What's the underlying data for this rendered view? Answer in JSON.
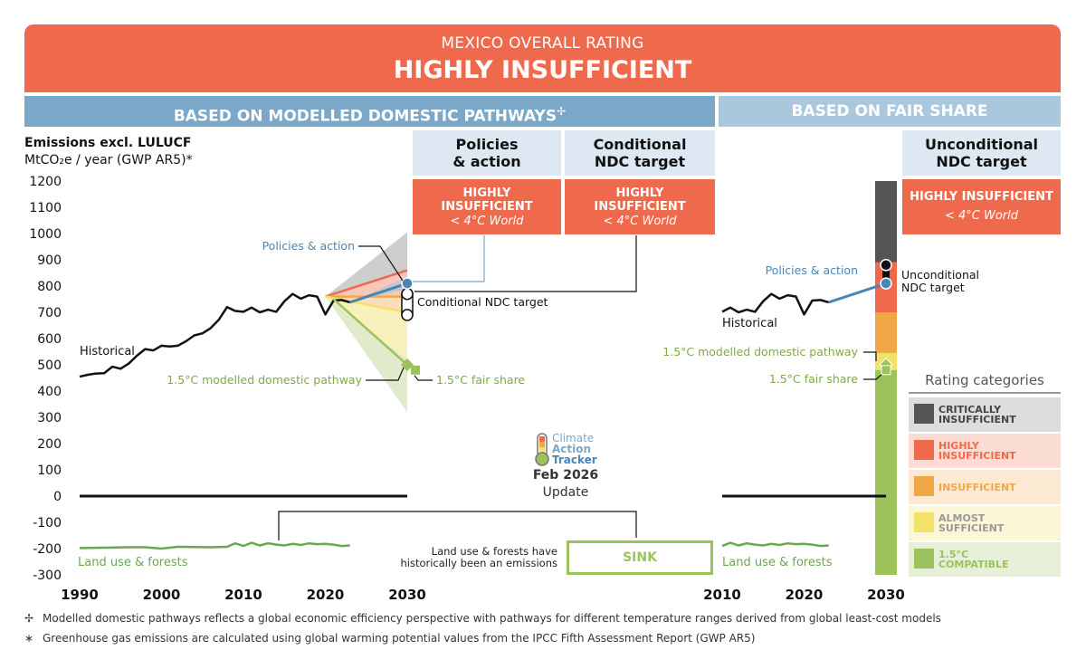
{
  "banner": {
    "subtitle": "MEXICO OVERALL RATING",
    "title": "HIGHLY INSUFFICIENT",
    "color": "#ef6a4c"
  },
  "section_headers": {
    "left": "BASED ON MODELLED DOMESTIC PATHWAYS",
    "left_symbol": "✢",
    "right": "BASED ON FAIR SHARE"
  },
  "columns": {
    "policies": {
      "title_line1": "Policies",
      "title_line2": "& action",
      "rating_line1": "HIGHLY",
      "rating_line2": "INSUFFICIENT",
      "world": "< 4°C World"
    },
    "conditional": {
      "title_line1": "Conditional",
      "title_line2": "NDC target",
      "rating_line1": "HIGHLY",
      "rating_line2": "INSUFFICIENT",
      "world": "< 4°C World"
    },
    "unconditional": {
      "title_line1": "Unconditional",
      "title_line2": "NDC target",
      "rating": "HIGHLY INSUFFICIENT",
      "world": "< 4°C World"
    }
  },
  "axis": {
    "title": "Emissions excl. LULUCF",
    "unit": "MtCO₂e / year (GWP AR5)*"
  },
  "annotations": {
    "historical": "Historical",
    "policies_action": "Policies & action",
    "conditional_ndc": "Conditional NDC target",
    "unconditional_ndc_line1": "Unconditional",
    "unconditional_ndc_line2": "NDC target",
    "modelled_pathway": "1.5°C modelled domestic pathway",
    "fair_share": "1.5°C fair share",
    "land_use": "Land use & forests",
    "sink_note_line1": "Land use & forests have",
    "sink_note_line2": "historically been an emissions",
    "sink": "SINK"
  },
  "update": {
    "logo_line1": "Climate",
    "logo_line2": "Action",
    "logo_line3": "Tracker",
    "date": "Feb 2026",
    "label": "Update"
  },
  "legend": {
    "title": "Rating categories",
    "items": [
      {
        "label_line1": "CRITICALLY",
        "label_line2": "INSUFFICIENT",
        "color": "#555555",
        "bg": "#dddddd",
        "text_color": "#444444"
      },
      {
        "label_line1": "HIGHLY",
        "label_line2": "INSUFFICIENT",
        "color": "#ef6a4c",
        "bg": "#fbdcd4",
        "text_color": "#ef6a4c"
      },
      {
        "label_line1": "INSUFFICIENT",
        "label_line2": "",
        "color": "#f0a847",
        "bg": "#fce9d2",
        "text_color": "#f0a847"
      },
      {
        "label_line1": "ALMOST",
        "label_line2": "SUFFICIENT",
        "color": "#f3e26a",
        "bg": "#fbf6d6",
        "text_color": "#999999"
      },
      {
        "label_line1": "1.5°C",
        "label_line2": "COMPATIBLE",
        "color": "#9cc25b",
        "bg": "#e6efd7",
        "text_color": "#9cc25b"
      }
    ]
  },
  "footnotes": {
    "f1_symbol": "✢",
    "f1": "Modelled domestic pathways reflects a global economic efficiency perspective with pathways for different temperature ranges derived from global least-cost models",
    "f2_symbol": "∗",
    "f2": "Greenhouse gas emissions are calculated using global warming potential values from the IPCC Fifth Assessment Report (GWP AR5)"
  },
  "chart_data": {
    "type": "line",
    "ylim": [
      -300,
      1200
    ],
    "yticks": [
      1200,
      1100,
      1000,
      900,
      800,
      700,
      600,
      500,
      400,
      300,
      200,
      100,
      0,
      -100,
      -200,
      -300
    ],
    "left_panel": {
      "xlim": [
        1990,
        2030
      ],
      "xticks": [
        1990,
        2000,
        2010,
        2020,
        2030
      ]
    },
    "right_panel": {
      "xlim": [
        2010,
        2030
      ],
      "xticks": [
        2010,
        2020,
        2030
      ]
    },
    "historical": {
      "x": [
        1990,
        1991,
        1992,
        1993,
        1994,
        1995,
        1996,
        1997,
        1998,
        1999,
        2000,
        2001,
        2002,
        2003,
        2004,
        2005,
        2006,
        2007,
        2008,
        2009,
        2010,
        2011,
        2012,
        2013,
        2014,
        2015,
        2016,
        2017,
        2018,
        2019,
        2020,
        2021,
        2022,
        2023
      ],
      "y": [
        455,
        462,
        467,
        468,
        493,
        485,
        505,
        535,
        560,
        555,
        573,
        570,
        573,
        590,
        612,
        620,
        640,
        672,
        720,
        705,
        702,
        718,
        700,
        710,
        702,
        742,
        770,
        752,
        765,
        760,
        692,
        745,
        747,
        738
      ]
    },
    "land_use": {
      "x": [
        1990,
        1992,
        1994,
        1996,
        1998,
        2000,
        2002,
        2004,
        2006,
        2008,
        2009,
        2010,
        2011,
        2012,
        2013,
        2014,
        2015,
        2016,
        2017,
        2018,
        2019,
        2020,
        2021,
        2022,
        2023
      ],
      "y": [
        -198,
        -197,
        -196,
        -195,
        -195,
        -200,
        -193,
        -194,
        -195,
        -193,
        -180,
        -190,
        -178,
        -188,
        -180,
        -185,
        -188,
        -182,
        -186,
        -180,
        -183,
        -182,
        -185,
        -190,
        -188
      ]
    },
    "policies_action": {
      "x": [
        2023,
        2030
      ],
      "y": [
        738,
        810
      ]
    },
    "policies_range": {
      "x": [
        2023,
        2030
      ],
      "y_low": [
        738,
        790
      ],
      "y_high": [
        738,
        835
      ]
    },
    "conditional_ndc": {
      "year": 2030,
      "range": [
        690,
        770
      ]
    },
    "unconditional_ndc": {
      "year": 2030,
      "range": [
        810,
        880
      ]
    },
    "pathway_bands": [
      {
        "rating": "critically insufficient",
        "x": [
          2020,
          2030
        ],
        "y_low": [
          760,
          860
        ],
        "y_high": [
          760,
          1005
        ]
      },
      {
        "rating": "highly insufficient",
        "x": [
          2020,
          2030
        ],
        "y_low": [
          760,
          760
        ],
        "y_high": [
          760,
          860
        ]
      },
      {
        "rating": "insufficient",
        "x": [
          2020,
          2030
        ],
        "y_low": [
          760,
          700
        ],
        "y_high": [
          760,
          760
        ]
      },
      {
        "rating": "almost sufficient",
        "x": [
          2020,
          2030
        ],
        "y_low": [
          760,
          520
        ],
        "y_high": [
          760,
          700
        ]
      },
      {
        "rating": "1.5C compatible",
        "x": [
          2020,
          2030
        ],
        "y_low": [
          760,
          320
        ],
        "y_high": [
          760,
          520
        ]
      }
    ],
    "modelled_pathway_1_5": {
      "x": [
        2021,
        2030
      ],
      "y": [
        750,
        500
      ]
    },
    "fair_share_1_5": {
      "year": 2030,
      "value": 480
    },
    "fair_share_bar": [
      {
        "rating": "critically insufficient",
        "from": 890,
        "to": 1200
      },
      {
        "rating": "highly insufficient",
        "from": 700,
        "to": 890
      },
      {
        "rating": "insufficient",
        "from": 545,
        "to": 700
      },
      {
        "rating": "almost sufficient",
        "from": 480,
        "to": 545
      },
      {
        "rating": "1.5C compatible",
        "from": -300,
        "to": 480
      }
    ]
  }
}
